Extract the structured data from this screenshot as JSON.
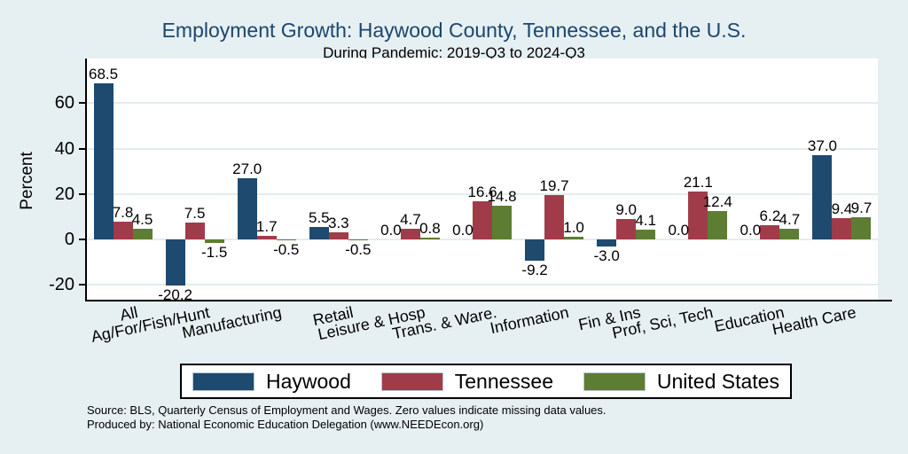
{
  "title": "Employment Growth: Haywood County, Tennessee, and the U.S.",
  "subtitle": "During Pandemic: 2019-Q3 to 2024-Q3",
  "y_axis": {
    "label": "Percent",
    "ticks": [
      60,
      40,
      20,
      0,
      -20
    ]
  },
  "legend": {
    "items": [
      {
        "label": "Haywood",
        "color": "#1e4a70"
      },
      {
        "label": "Tennessee",
        "color": "#a03c4a"
      },
      {
        "label": "United States",
        "color": "#5d7d33"
      }
    ]
  },
  "notes": {
    "line1": "Source: BLS, Quarterly Census of Employment and Wages. Zero values indicate missing data values.",
    "line2": "Produced by: National Economic Education Delegation (www.NEEDEcon.org)"
  },
  "colors": {
    "background": "#e6eff2",
    "plot_background": "#ffffff",
    "gridline": "#e3edec",
    "axis": "#000000",
    "title": "#1a476f",
    "haywood": "#1e4a70",
    "tennessee": "#a03c4a",
    "united_states": "#5d7d33"
  },
  "chart_data": {
    "type": "bar",
    "title": "Employment Growth: Haywood County, Tennessee, and the U.S.",
    "subtitle": "During Pandemic: 2019-Q3 to 2024-Q3",
    "xlabel": "",
    "ylabel": "Percent",
    "ylim": [
      -27,
      75
    ],
    "grid": true,
    "legend_position": "bottom",
    "value_labels": "one_decimal",
    "categories": [
      "All",
      "Ag/For/Fish/Hunt",
      "Manufacturing",
      "Retail",
      "Leisure & Hosp",
      "Trans. & Ware.",
      "Information",
      "Fin & Ins",
      "Prof, Sci, Tech",
      "Education",
      "Health Care"
    ],
    "series": [
      {
        "name": "Haywood",
        "color": "#1e4a70",
        "values": [
          68.5,
          -20.2,
          27.0,
          5.5,
          0.0,
          0.0,
          -9.2,
          -3.0,
          0.0,
          0.0,
          37.0
        ]
      },
      {
        "name": "Tennessee",
        "color": "#a03c4a",
        "values": [
          7.8,
          7.5,
          1.7,
          3.3,
          4.7,
          16.6,
          19.7,
          9.0,
          21.1,
          6.2,
          9.4
        ]
      },
      {
        "name": "United States",
        "color": "#5d7d33",
        "values": [
          4.5,
          -1.5,
          -0.5,
          -0.5,
          0.8,
          14.8,
          1.0,
          4.1,
          12.4,
          4.7,
          9.7
        ]
      }
    ]
  }
}
